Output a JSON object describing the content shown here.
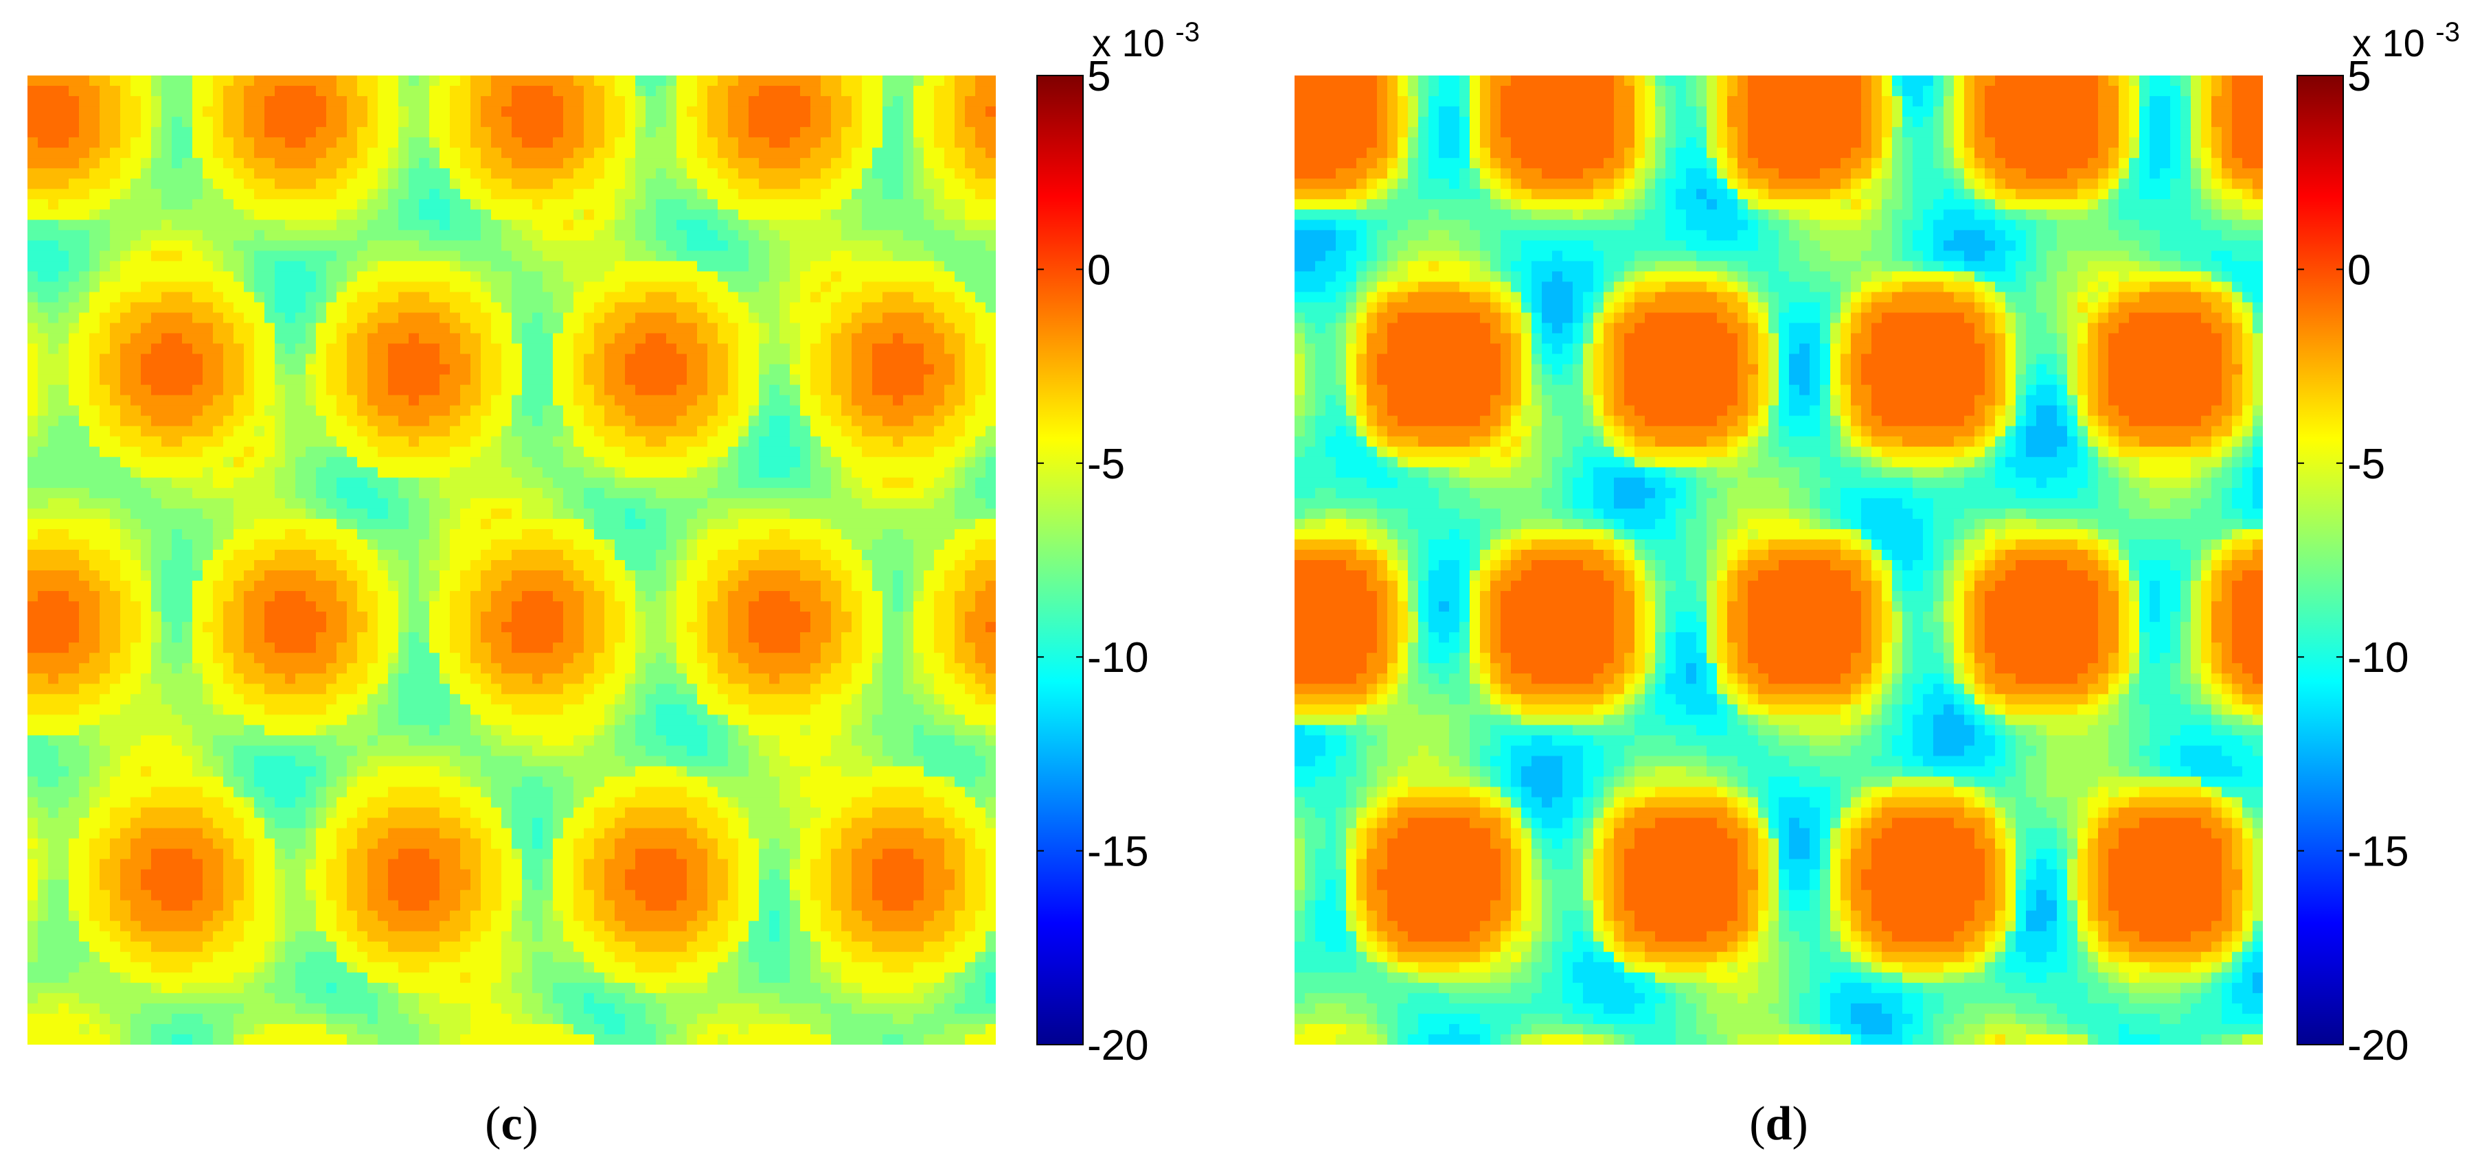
{
  "chart_data": [
    {
      "type": "heatmap",
      "panel_label": "c",
      "colorbar": {
        "multiplier": "x 10",
        "multiplier_exponent": "-3",
        "range": [
          -20,
          5
        ],
        "ticks": [
          5,
          0,
          -5,
          -10,
          -15,
          -20
        ],
        "tick_labels": [
          "5",
          "0",
          "-5",
          "-10",
          "-15",
          "-20"
        ],
        "colormap": "jet"
      },
      "field": {
        "background_value": -7,
        "grid_cols": 4,
        "grid_rows": 5,
        "peak_value": -0.8,
        "description_values": "orange domains near -1, green background near -7, cyan/blue pockets down to about -13"
      }
    },
    {
      "type": "heatmap",
      "panel_label": "d",
      "colorbar": {
        "multiplier": "x 10",
        "multiplier_exponent": "-3",
        "range": [
          -20,
          5
        ],
        "ticks": [
          5,
          0,
          -5,
          -10,
          -15,
          -20
        ],
        "tick_labels": [
          "5",
          "0",
          "-5",
          "-10",
          "-15",
          "-20"
        ],
        "colormap": "jet"
      },
      "field": {
        "background_value": -8,
        "grid_cols": 4,
        "grid_rows": 5,
        "peak_value": -0.8,
        "description_values": "sharp orange domains near -1, green/cyan background near -8, blue channels down to about -15"
      }
    }
  ]
}
